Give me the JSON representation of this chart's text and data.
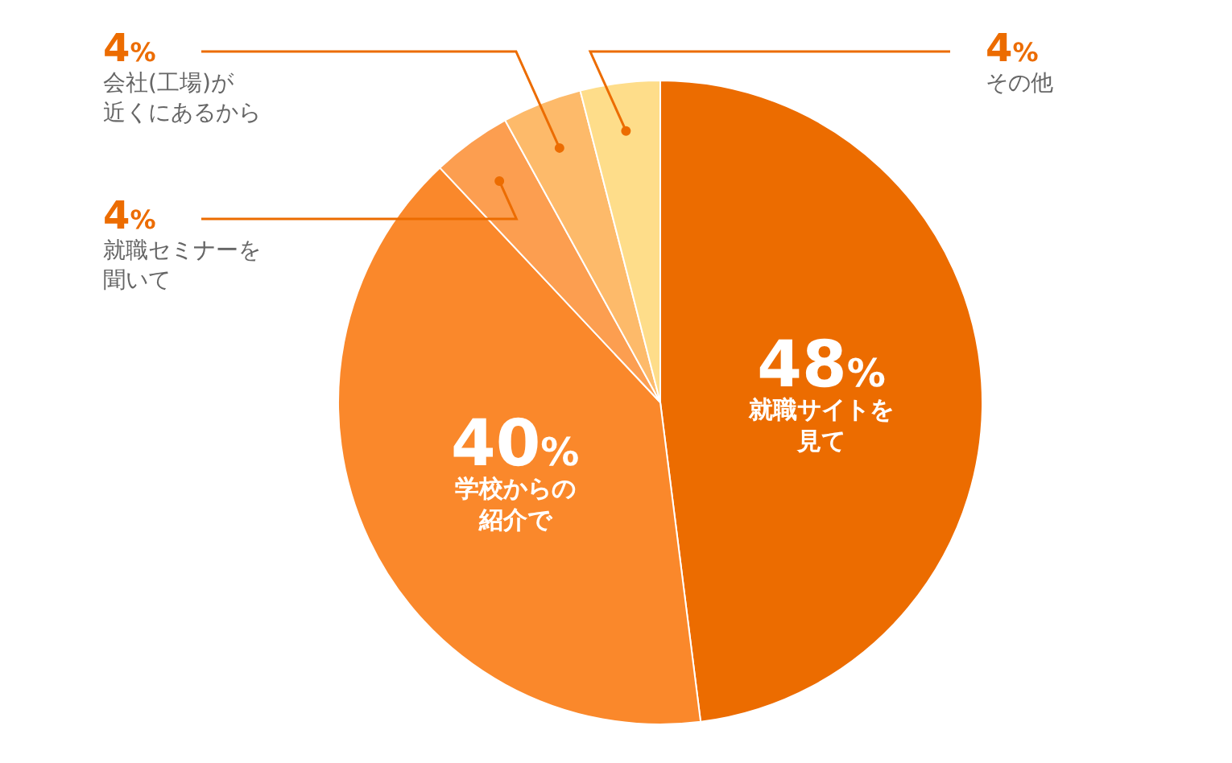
{
  "chart_data": {
    "type": "pie",
    "categories": [
      "就職サイトを見て",
      "学校からの紹介で",
      "就職セミナーを聞いて",
      "会社(工場)が近くにあるから",
      "その他"
    ],
    "values": [
      48,
      40,
      4,
      4,
      4
    ],
    "value_labels": [
      "48%",
      "40%",
      "4%",
      "4%",
      "4%"
    ],
    "colors": [
      "#ec6c00",
      "#fa882b",
      "#fc9e50",
      "#fdba6a",
      "#fedd8a"
    ],
    "legend": false
  }
}
